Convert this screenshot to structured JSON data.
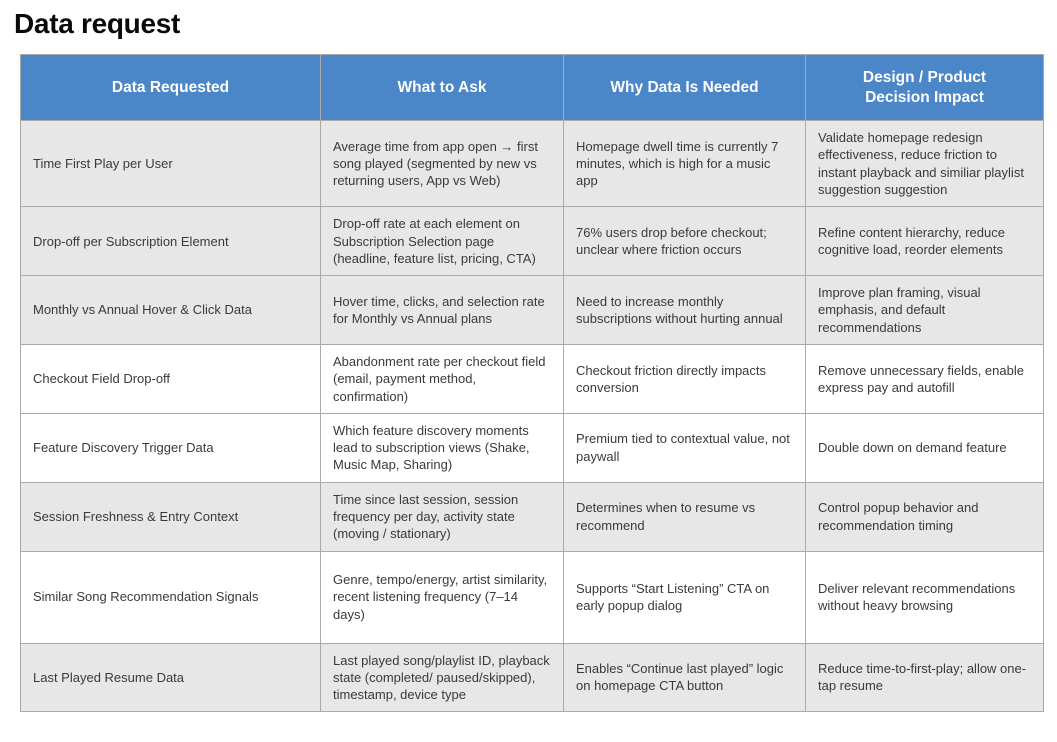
{
  "page": {
    "title": "Data request"
  },
  "table": {
    "columns": [
      "Data Requested",
      "What to Ask",
      "Why Data Is Needed",
      "Design / Product Decision Impact"
    ],
    "rows": [
      {
        "data_requested": "Time First Play per User",
        "what_to_ask": "Average time from app open → first song played (segmented by new vs returning users, App vs Web)",
        "why_needed": "Homepage dwell time is currently 7 minutes, which is high for a music app",
        "impact": "Validate homepage redesign effectiveness, reduce friction to instant playback and similiar playlist suggestion suggestion"
      },
      {
        "data_requested": "Drop-off per Subscription Element",
        "what_to_ask": "Drop-off rate at each element on Subscription Selection page (headline, feature list, pricing, CTA)",
        "why_needed": "76% users drop before checkout; unclear where friction occurs",
        "impact": "Refine content hierarchy, reduce cognitive load, reorder elements"
      },
      {
        "data_requested": "Monthly vs Annual Hover & Click Data",
        "what_to_ask": "Hover time, clicks, and selection rate for Monthly vs Annual plans",
        "why_needed": "Need to increase monthly subscriptions without hurting annual",
        "impact": "Improve plan framing, visual emphasis, and default recommendations"
      },
      {
        "data_requested": "Checkout Field Drop-off",
        "what_to_ask": "Abandonment rate per checkout field (email, payment method, confirmation)",
        "why_needed": "Checkout friction directly impacts conversion",
        "impact": "Remove unnecessary fields, enable express pay and autofill"
      },
      {
        "data_requested": "Feature Discovery Trigger Data",
        "what_to_ask": "Which feature discovery moments lead to subscription views (Shake, Music Map, Sharing)",
        "why_needed": "Premium tied to contextual value, not paywall",
        "impact": "Double down on demand feature"
      },
      {
        "data_requested": "Session Freshness & Entry Context",
        "what_to_ask": "Time since last session, session frequency per day, activity state (moving / stationary)",
        "why_needed": "Determines when to resume vs recommend",
        "impact": "Control popup behavior and recommendation timing"
      },
      {
        "data_requested": "Similar Song Recommendation Signals",
        "what_to_ask": "Genre, tempo/energy, artist similarity, recent listening frequency (7–14 days)",
        "why_needed": "Supports “Start Listening” CTA on early popup dialog",
        "impact": "Deliver relevant recommendations without heavy browsing"
      },
      {
        "data_requested": "Last Played Resume Data",
        "what_to_ask": "Last played song/playlist ID, playback state (completed/ paused/skipped), timestamp, device type",
        "why_needed": "Enables “Continue last played” logic on homepage CTA button",
        "impact": "Reduce time-to-first-play; allow one-tap resume"
      }
    ],
    "colors": {
      "header_bg": "#4A86C8",
      "header_text": "#FFFFFF",
      "shaded_row_bg": "#E7E7E7",
      "plain_row_bg": "#FFFFFF",
      "border": "#A9A9A9",
      "body_text": "#3A3A3A",
      "title_text": "#0A0A0A"
    }
  }
}
